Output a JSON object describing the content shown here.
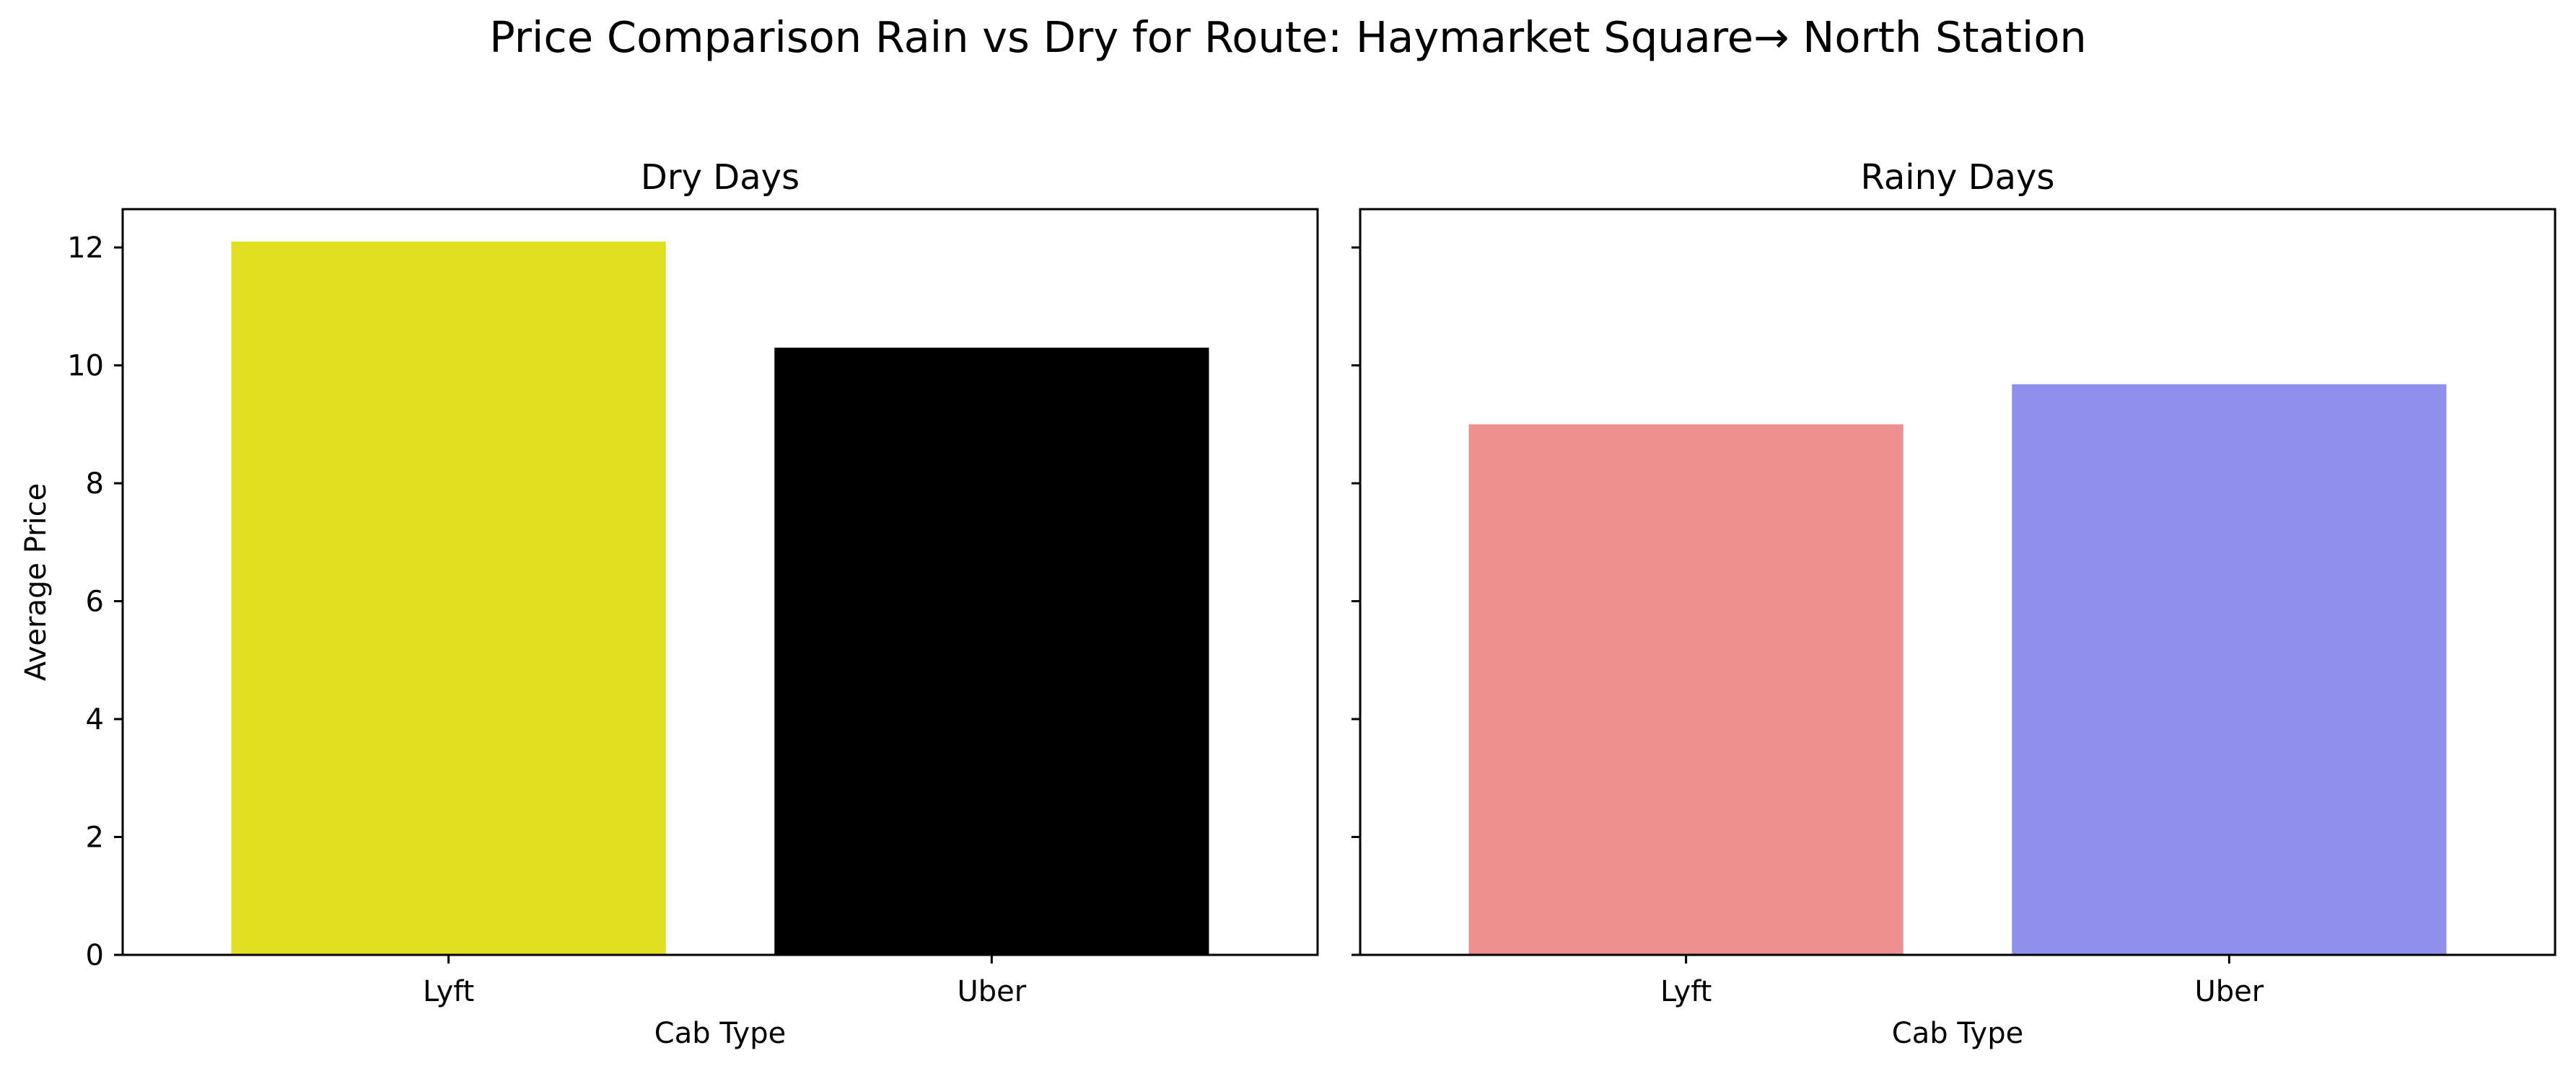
{
  "chart_data": {
    "title": "Price Comparison Rain vs Dry for Route: Haymarket Square→ North Station",
    "ylim": [
      0,
      12.65
    ],
    "yticks": [
      0,
      2,
      4,
      6,
      8,
      10,
      12
    ],
    "sharey": true,
    "panels": [
      {
        "type": "bar",
        "title": "Dry Days",
        "xlabel": "Cab Type",
        "ylabel": "Average Price",
        "categories": [
          "Lyft",
          "Uber"
        ],
        "values": [
          12.1,
          10.3
        ],
        "colors": [
          "#e0e020",
          "#000000"
        ]
      },
      {
        "type": "bar",
        "title": "Rainy Days",
        "xlabel": "Cab Type",
        "ylabel": "",
        "categories": [
          "Lyft",
          "Uber"
        ],
        "values": [
          9.0,
          9.68
        ],
        "colors": [
          "#ec8f8f",
          "#8f8fec"
        ]
      }
    ]
  }
}
